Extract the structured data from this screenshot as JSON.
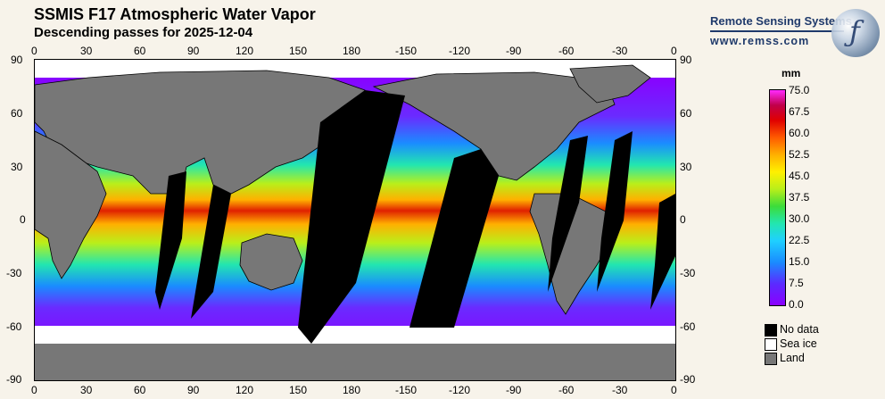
{
  "header": {
    "title": "SSMIS F17 Atmospheric Water Vapor",
    "subtitle": "Descending passes for 2025-12-04",
    "brand": "Remote Sensing Systems",
    "brand_url": "www.remss.com",
    "brand_glyph": "ƒ"
  },
  "axes": {
    "top_lon": [
      "0",
      "30",
      "60",
      "90",
      "120",
      "150",
      "180",
      "-150",
      "-120",
      "-90",
      "-60",
      "-30",
      "0"
    ],
    "bottom_lon": [
      "0",
      "30",
      "60",
      "90",
      "120",
      "150",
      "180",
      "-150",
      "-120",
      "-90",
      "-60",
      "-30",
      "0"
    ],
    "left_lat": [
      "90",
      "60",
      "30",
      "0",
      "-30",
      "-60",
      "-90"
    ],
    "right_lat": [
      "90",
      "60",
      "30",
      "0",
      "-30",
      "-60",
      "-90"
    ]
  },
  "colorbar": {
    "unit": "mm",
    "ticks": [
      "75.0",
      "67.5",
      "60.0",
      "52.5",
      "45.0",
      "37.5",
      "30.0",
      "22.5",
      "15.0",
      "7.5",
      "0.0"
    ]
  },
  "legend": [
    {
      "label": "No data",
      "color": "#000000"
    },
    {
      "label": "Sea ice",
      "color": "#ffffff"
    },
    {
      "label": "Land",
      "color": "#777777"
    }
  ],
  "colors": {
    "land": "#777777",
    "no_data": "#000000",
    "sea_ice": "#ffffff",
    "brand": "#1f3a6b"
  }
}
